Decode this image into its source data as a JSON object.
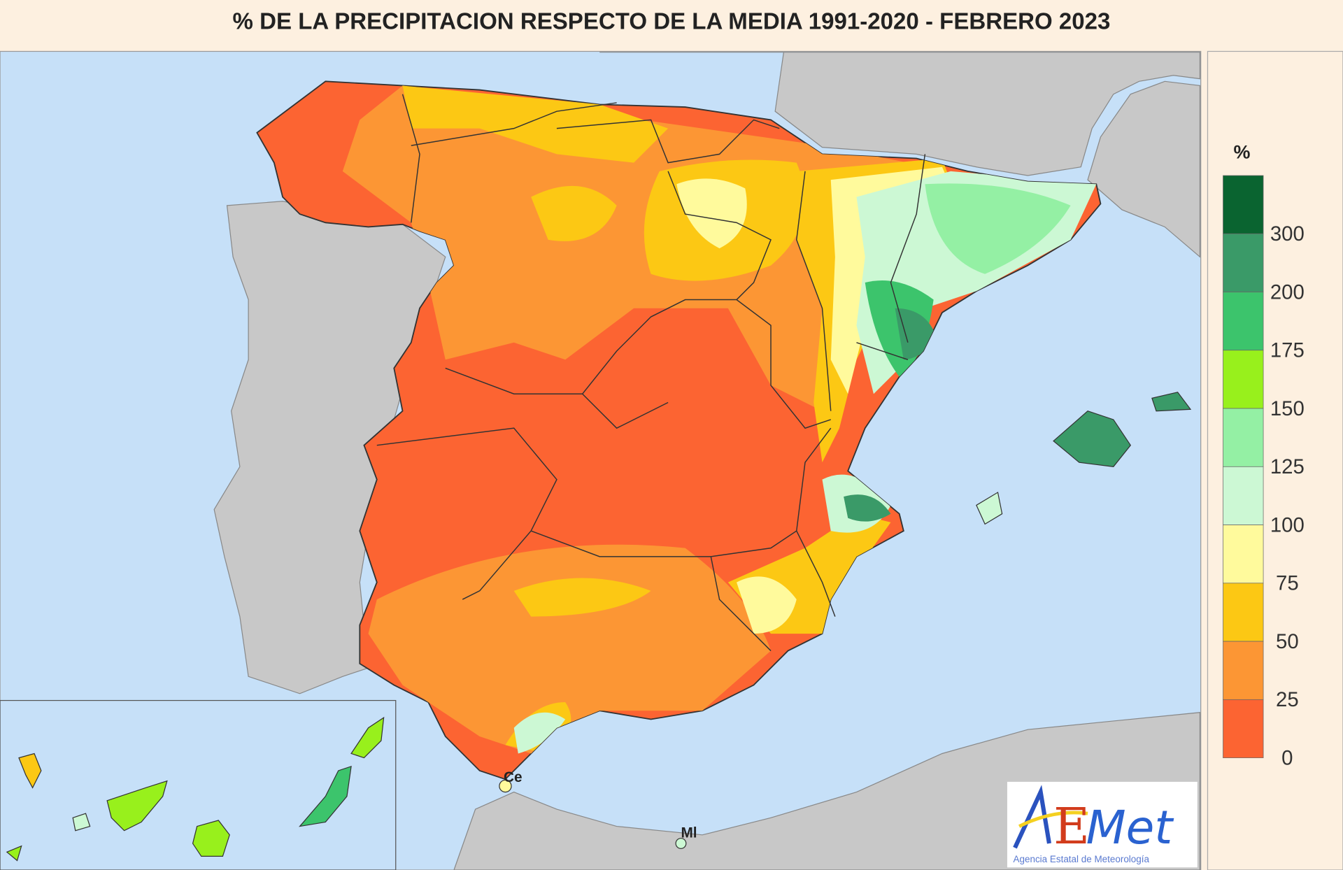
{
  "title": "% DE LA PRECIPITACION RESPECTO DE LA MEDIA 1991-2020 - FEBRERO 2023",
  "legend": {
    "unit": "%",
    "bins": [
      {
        "from": 300,
        "to": null,
        "color": "#0a6430"
      },
      {
        "from": 200,
        "to": 300,
        "color": "#3a9a68"
      },
      {
        "from": 175,
        "to": 200,
        "color": "#3cc46c"
      },
      {
        "from": 150,
        "to": 175,
        "color": "#98f01c"
      },
      {
        "from": 125,
        "to": 150,
        "color": "#94f0a4"
      },
      {
        "from": 100,
        "to": 125,
        "color": "#ccf8d4"
      },
      {
        "from": 75,
        "to": 100,
        "color": "#fffa9c"
      },
      {
        "from": 50,
        "to": 75,
        "color": "#fcc814"
      },
      {
        "from": 25,
        "to": 50,
        "color": "#fc9634"
      },
      {
        "from": 0,
        "to": 25,
        "color": "#fc6432"
      }
    ],
    "tick_labels": [
      "300",
      "200",
      "175",
      "150",
      "125",
      "100",
      "75",
      "50",
      "25",
      "0"
    ]
  },
  "places": {
    "ceuta": "Ce",
    "melilla": "Ml"
  },
  "logo": {
    "name": "AEMet",
    "subtitle": "Agencia Estatal de Meteorología"
  },
  "colors": {
    "sea": "#c6e0f8",
    "land_other": "#c8c8c8",
    "background": "#fdf0e0"
  }
}
